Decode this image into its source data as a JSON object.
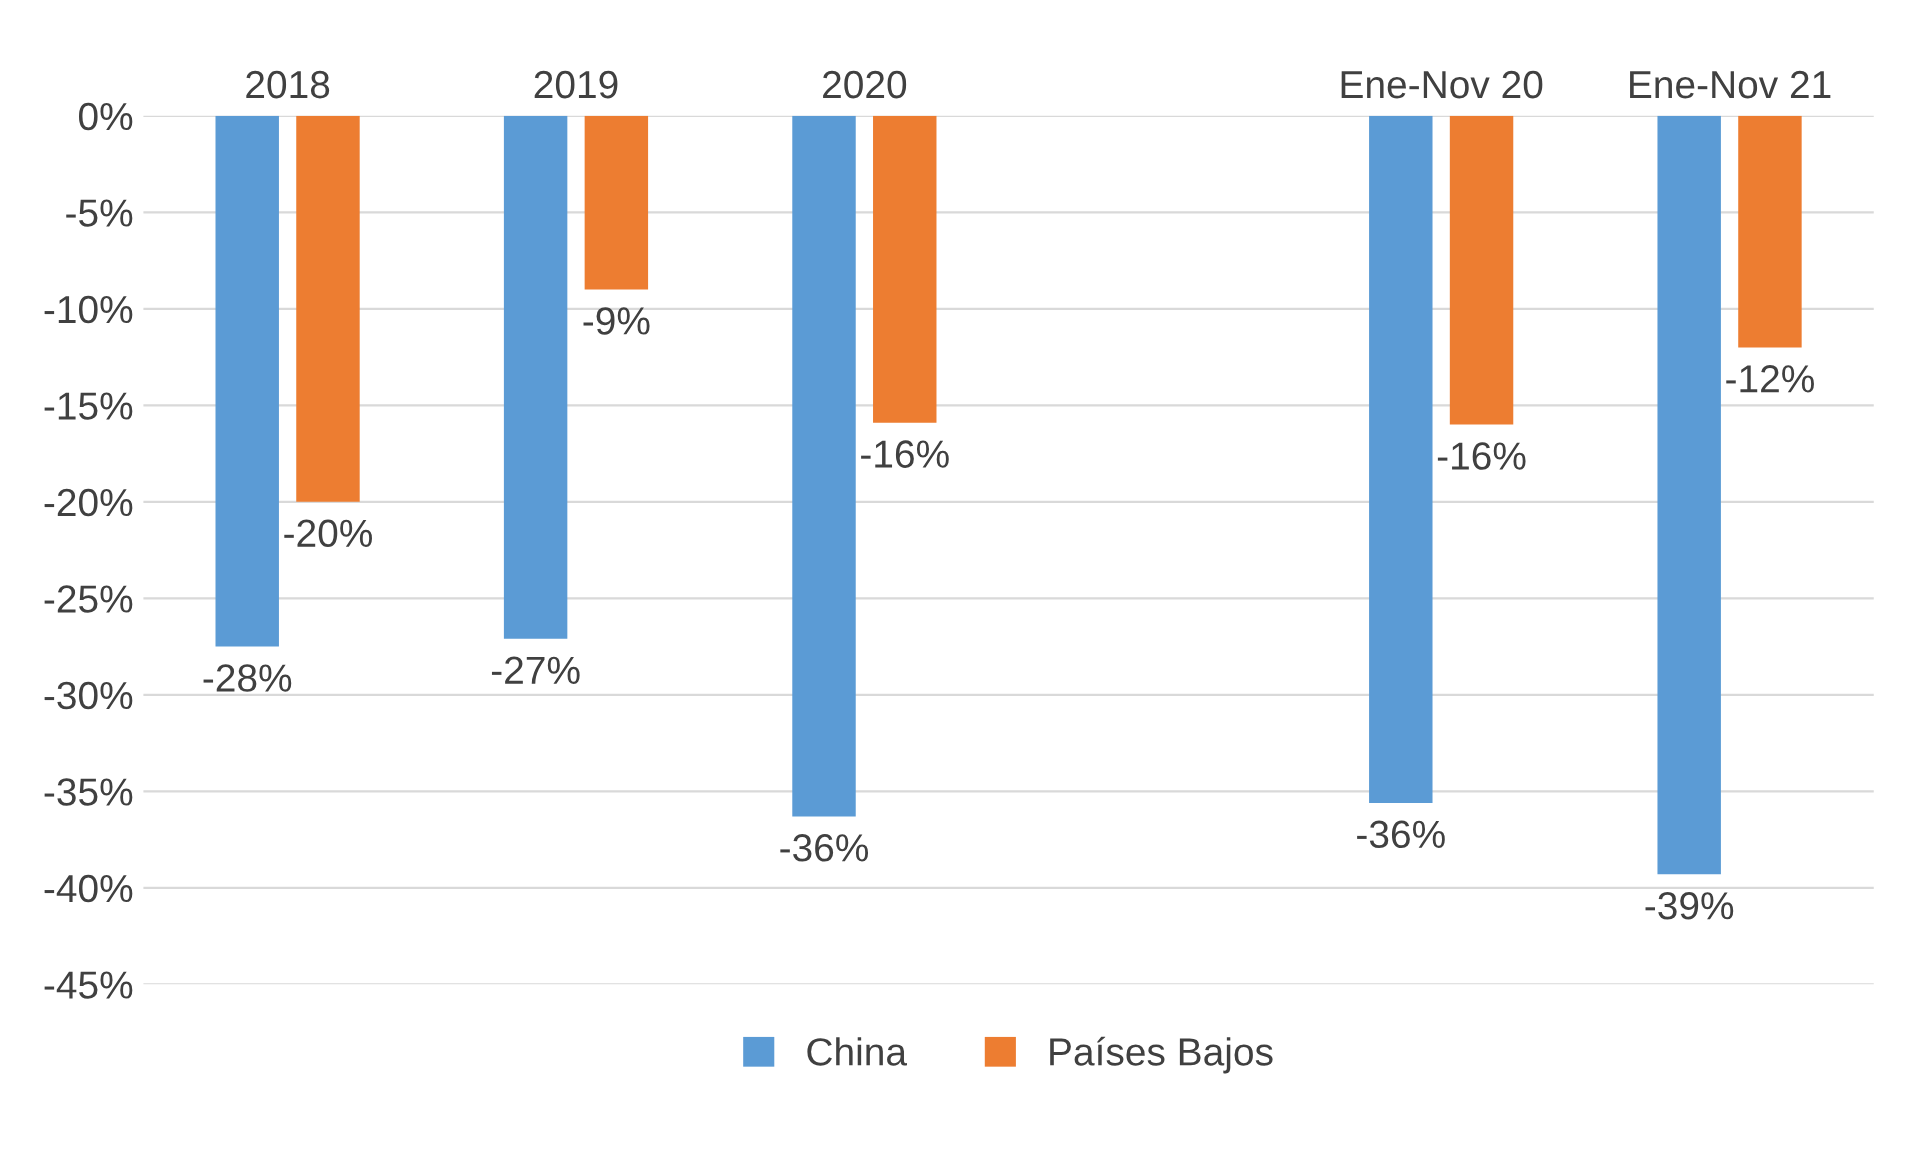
{
  "chart_data": {
    "type": "bar",
    "categories": [
      "2018",
      "2019",
      "2020",
      null,
      "Ene-Nov 20",
      "Ene-Nov 21"
    ],
    "series": [
      {
        "name": "China",
        "color": "#5b9bd5",
        "values": [
          -27.5,
          -27.1,
          -36.3,
          null,
          -35.6,
          -39.3
        ],
        "value_labels": [
          "-28%",
          "-27%",
          "-36%",
          null,
          "-36%",
          "-39%"
        ]
      },
      {
        "name": "Países Bajos",
        "color": "#ed7d31",
        "values": [
          -20.0,
          -9.0,
          -15.9,
          null,
          -16.0,
          -12.0
        ],
        "value_labels": [
          "-20%",
          "-9%",
          "-16%",
          null,
          "-16%",
          "-12%"
        ]
      }
    ],
    "ylim": [
      -45,
      0
    ],
    "yticks": [
      {
        "value": 0,
        "label": "0%"
      },
      {
        "value": -5,
        "label": "-5%"
      },
      {
        "value": -10,
        "label": "-10%"
      },
      {
        "value": -15,
        "label": "-15%"
      },
      {
        "value": -20,
        "label": "-20%"
      },
      {
        "value": -25,
        "label": "-25%"
      },
      {
        "value": -30,
        "label": "-30%"
      },
      {
        "value": -35,
        "label": "-35%"
      },
      {
        "value": -40,
        "label": "-40%"
      },
      {
        "value": -45,
        "label": "-45%"
      }
    ],
    "grid": "y",
    "legend": "bottom"
  }
}
